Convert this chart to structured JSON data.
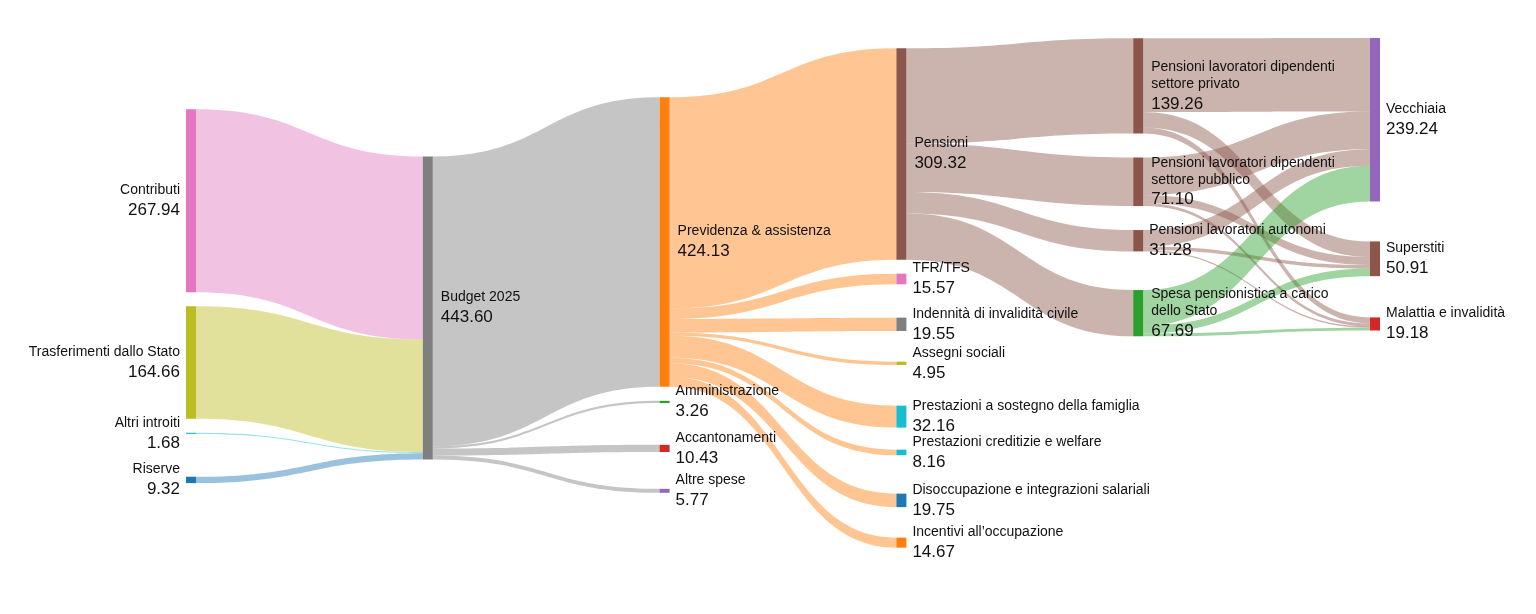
{
  "chart_data": {
    "type": "other",
    "categories": [
      "Contributi",
      "Trasferimenti dallo Stato",
      "Altri introiti",
      "Riserve",
      "Budget 2025",
      "Previdenza & assistenza",
      "Amministrazione",
      "Accantonamenti",
      "Altre spese",
      "Pensioni",
      "TFR/TFS",
      "Indennità di invalidità civile",
      "Assegni sociali",
      "Prestazioni a sostegno della famiglia",
      "Prestazioni creditizie e welfare",
      "Disoccupazione e integrazioni salariali",
      "Incentivi all’occupazione",
      "Pensioni lavoratori dipendenti settore privato",
      "Pensioni lavoratori dipendenti settore pubblico",
      "Pensioni lavoratori autonomi",
      "Spesa pensionistica a carico dello Stato",
      "Vecchiaia",
      "Superstiti",
      "Malattia e invalidità"
    ],
    "values": [
      267.94,
      164.66,
      1.68,
      9.32,
      443.6,
      424.13,
      3.26,
      10.43,
      5.77,
      309.32,
      15.57,
      19.55,
      4.95,
      32.16,
      8.16,
      19.75,
      14.67,
      139.26,
      71.1,
      31.28,
      67.69,
      239.24,
      50.91,
      19.18
    ],
    "value_labels": [
      "267.94",
      "164.66",
      "1.68",
      "9.32",
      "443.60",
      "424.13",
      "3.26",
      "10.43",
      "5.77",
      "309.32",
      "15.57",
      "19.55",
      "4.95",
      "32.16",
      "8.16",
      "19.75",
      "14.67",
      "139.26",
      "71.10",
      "31.28",
      "67.69",
      "239.24",
      "50.91",
      "19.18"
    ],
    "colors": [
      "#e377c2",
      "#bcbd22",
      "#17becf",
      "#1f77b4",
      "#7f7f7f",
      "#ff7f0e",
      "#2ca02c",
      "#d62728",
      "#9467bd",
      "#8c564b",
      "#e377c2",
      "#7f7f7f",
      "#bcbd22",
      "#17becf",
      "#17becf",
      "#1f77b4",
      "#ff7f0e",
      "#8c564b",
      "#8c564b",
      "#8c564b",
      "#2ca02c",
      "#9467bd",
      "#8c564b",
      "#d62728"
    ],
    "data_labels": true
  }
}
